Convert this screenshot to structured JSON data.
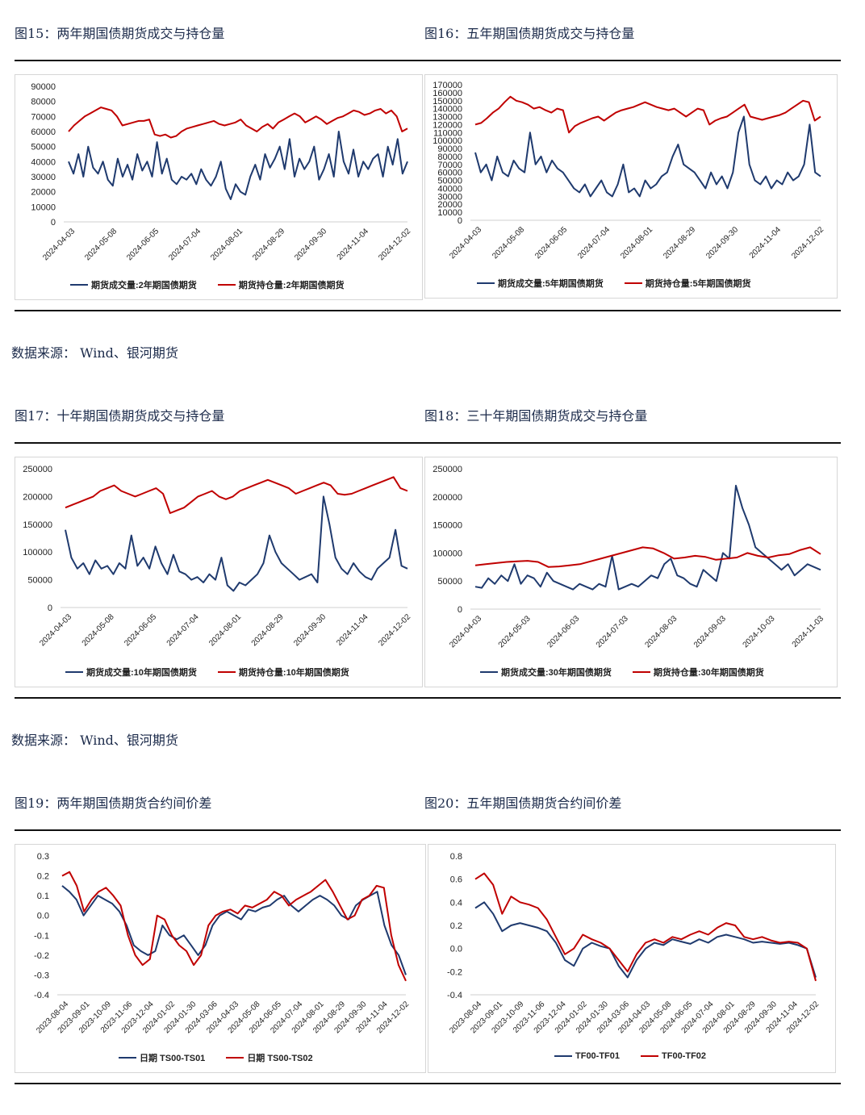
{
  "colors": {
    "blue": "#1f3a6e",
    "red": "#c00000",
    "axis": "#cfcfcf",
    "text": "#222222"
  },
  "row1": {
    "left_title": "图15：两年期国债期货成交与持仓量",
    "right_title": "图16：五年期国债期货成交与持仓量",
    "source": "数据来源：   Wind、银河期货"
  },
  "row2": {
    "left_title": "图17：十年期国债期货成交与持仓量",
    "right_title": "图18：三十年期国债期货成交与持仓量",
    "source": "数据来源：   Wind、银河期货"
  },
  "row3": {
    "left_title": "图19：两年期国债期货合约间价差",
    "right_title": "图20：五年期国债期货合约间价差"
  },
  "chart_data": [
    {
      "id": "c15",
      "type": "line",
      "title": "两年期国债期货成交与持仓量",
      "y_ticks": [
        0,
        10000,
        20000,
        30000,
        40000,
        50000,
        60000,
        70000,
        80000,
        90000
      ],
      "ylim": [
        0,
        90000
      ],
      "x_ticks": [
        "2024-04-03",
        "2024-05-08",
        "2024-06-05",
        "2024-07-04",
        "2024-08-01",
        "2024-08-29",
        "2024-09-30",
        "2024-11-04",
        "2024-12-02"
      ],
      "series": [
        {
          "name": "期货成交量:2年期国债期货",
          "color": "blue",
          "values": [
            40000,
            32000,
            45000,
            30000,
            50000,
            36000,
            32000,
            40000,
            28000,
            24000,
            42000,
            30000,
            38000,
            28000,
            45000,
            34000,
            40000,
            30000,
            53000,
            32000,
            42000,
            28000,
            25000,
            30000,
            28000,
            32000,
            25000,
            35000,
            28000,
            24000,
            30000,
            40000,
            22000,
            15000,
            25000,
            20000,
            18000,
            30000,
            38000,
            28000,
            45000,
            36000,
            42000,
            50000,
            35000,
            55000,
            30000,
            42000,
            35000,
            40000,
            50000,
            28000,
            35000,
            45000,
            30000,
            60000,
            40000,
            32000,
            48000,
            30000,
            40000,
            35000,
            42000,
            45000,
            30000,
            50000,
            38000,
            55000,
            32000,
            40000
          ]
        },
        {
          "name": "期货持仓量:2年期国债期货",
          "color": "red",
          "values": [
            60000,
            64000,
            67000,
            70000,
            72000,
            74000,
            76000,
            75000,
            74000,
            70000,
            64000,
            65000,
            66000,
            67000,
            67000,
            68000,
            58000,
            57000,
            58000,
            56000,
            57000,
            60000,
            62000,
            63000,
            64000,
            65000,
            66000,
            67000,
            65000,
            64000,
            65000,
            66000,
            68000,
            64000,
            62000,
            60000,
            63000,
            65000,
            62000,
            66000,
            68000,
            70000,
            72000,
            70000,
            66000,
            68000,
            70000,
            68000,
            65000,
            67000,
            69000,
            70000,
            72000,
            74000,
            73000,
            71000,
            72000,
            74000,
            75000,
            72000,
            74000,
            70000,
            60000,
            62000
          ]
        }
      ]
    },
    {
      "id": "c16",
      "type": "line",
      "title": "五年期国债期货成交与持仓量",
      "y_ticks": [
        0,
        10000,
        20000,
        30000,
        40000,
        50000,
        60000,
        70000,
        80000,
        90000,
        100000,
        110000,
        120000,
        130000,
        140000,
        150000,
        160000,
        170000
      ],
      "ylim": [
        0,
        170000
      ],
      "x_ticks": [
        "2024-04-03",
        "2024-05-08",
        "2024-06-05",
        "2024-07-04",
        "2024-08-01",
        "2024-08-29",
        "2024-09-30",
        "2024-11-04",
        "2024-12-02"
      ],
      "series": [
        {
          "name": "期货成交量:5年期国债期货",
          "color": "blue",
          "values": [
            85000,
            60000,
            70000,
            50000,
            80000,
            60000,
            55000,
            75000,
            65000,
            60000,
            110000,
            70000,
            80000,
            60000,
            75000,
            65000,
            60000,
            50000,
            40000,
            35000,
            45000,
            30000,
            40000,
            50000,
            35000,
            30000,
            45000,
            70000,
            35000,
            40000,
            30000,
            50000,
            40000,
            45000,
            55000,
            60000,
            80000,
            95000,
            70000,
            65000,
            60000,
            50000,
            40000,
            60000,
            45000,
            55000,
            40000,
            60000,
            110000,
            130000,
            70000,
            50000,
            45000,
            55000,
            40000,
            50000,
            45000,
            60000,
            50000,
            55000,
            70000,
            120000,
            60000,
            55000
          ]
        },
        {
          "name": "期货持仓量:5年期国债期货",
          "color": "red",
          "values": [
            120000,
            122000,
            128000,
            135000,
            140000,
            148000,
            155000,
            150000,
            148000,
            145000,
            140000,
            142000,
            138000,
            135000,
            140000,
            138000,
            110000,
            118000,
            122000,
            125000,
            128000,
            130000,
            125000,
            130000,
            135000,
            138000,
            140000,
            142000,
            145000,
            148000,
            145000,
            142000,
            140000,
            138000,
            140000,
            135000,
            130000,
            135000,
            140000,
            138000,
            120000,
            125000,
            128000,
            130000,
            135000,
            140000,
            145000,
            130000,
            128000,
            126000,
            128000,
            130000,
            132000,
            135000,
            140000,
            145000,
            150000,
            148000,
            125000,
            130000
          ]
        }
      ]
    },
    {
      "id": "c17",
      "type": "line",
      "title": "十年期国债期货成交与持仓量",
      "y_ticks": [
        0,
        50000,
        100000,
        150000,
        200000,
        250000
      ],
      "ylim": [
        0,
        250000
      ],
      "x_ticks": [
        "2024-04-03",
        "2024-05-08",
        "2024-06-05",
        "2024-07-04",
        "2024-08-01",
        "2024-08-29",
        "2024-09-30",
        "2024-11-04",
        "2024-12-02"
      ],
      "series": [
        {
          "name": "期货成交量:10年期国债期货",
          "color": "blue",
          "values": [
            140000,
            90000,
            70000,
            80000,
            60000,
            85000,
            70000,
            75000,
            60000,
            80000,
            70000,
            130000,
            75000,
            90000,
            70000,
            110000,
            80000,
            60000,
            95000,
            65000,
            60000,
            50000,
            55000,
            45000,
            60000,
            50000,
            90000,
            40000,
            30000,
            45000,
            40000,
            50000,
            60000,
            80000,
            130000,
            100000,
            80000,
            70000,
            60000,
            50000,
            55000,
            60000,
            45000,
            200000,
            150000,
            90000,
            70000,
            60000,
            80000,
            65000,
            55000,
            50000,
            70000,
            80000,
            90000,
            140000,
            75000,
            70000
          ]
        },
        {
          "name": "期货持仓量:10年期国债期货",
          "color": "red",
          "values": [
            180000,
            185000,
            190000,
            195000,
            200000,
            210000,
            215000,
            220000,
            210000,
            205000,
            200000,
            205000,
            210000,
            215000,
            205000,
            170000,
            175000,
            180000,
            190000,
            200000,
            205000,
            210000,
            200000,
            195000,
            200000,
            210000,
            215000,
            220000,
            225000,
            230000,
            225000,
            220000,
            215000,
            205000,
            210000,
            215000,
            220000,
            225000,
            220000,
            205000,
            203000,
            205000,
            210000,
            215000,
            220000,
            225000,
            230000,
            235000,
            215000,
            210000
          ]
        }
      ]
    },
    {
      "id": "c18",
      "type": "line",
      "title": "三十年期国债期货成交与持仓量",
      "y_ticks": [
        0,
        50000,
        100000,
        150000,
        200000,
        250000
      ],
      "ylim": [
        0,
        250000
      ],
      "x_ticks": [
        "2024-04-03",
        "2024-05-03",
        "2024-06-03",
        "2024-07-03",
        "2024-08-03",
        "2024-09-03",
        "2024-10-03",
        "2024-11-03"
      ],
      "series": [
        {
          "name": "期货成交量:30年期国债期货",
          "color": "blue",
          "values": [
            40000,
            38000,
            55000,
            45000,
            60000,
            50000,
            80000,
            45000,
            60000,
            55000,
            40000,
            65000,
            50000,
            45000,
            40000,
            35000,
            45000,
            40000,
            35000,
            45000,
            40000,
            95000,
            35000,
            40000,
            45000,
            40000,
            50000,
            60000,
            55000,
            80000,
            90000,
            60000,
            55000,
            45000,
            40000,
            70000,
            60000,
            50000,
            100000,
            90000,
            220000,
            180000,
            150000,
            110000,
            100000,
            90000,
            80000,
            70000,
            80000,
            60000,
            70000,
            80000,
            75000,
            70000
          ]
        },
        {
          "name": "期货持仓量:30年期国债期货",
          "color": "red",
          "values": [
            78000,
            80000,
            82000,
            84000,
            85000,
            86000,
            84000,
            75000,
            76000,
            78000,
            80000,
            85000,
            90000,
            95000,
            100000,
            105000,
            110000,
            108000,
            100000,
            90000,
            92000,
            95000,
            93000,
            88000,
            90000,
            92000,
            100000,
            95000,
            92000,
            96000,
            98000,
            105000,
            110000,
            98000
          ]
        }
      ]
    },
    {
      "id": "c19",
      "type": "line",
      "title": "两年期国债期货合约间价差",
      "y_ticks": [
        -0.4,
        -0.3,
        -0.2,
        -0.1,
        0.0,
        0.1,
        0.2,
        0.3
      ],
      "y_tick_labels": [
        "-0.4",
        "-0.3",
        "-0.2",
        "-0.1",
        "0.0",
        "0.1",
        "0.2",
        "0.3"
      ],
      "ylim": [
        -0.4,
        0.3
      ],
      "x_ticks": [
        "2023-08-04",
        "2023-09-01",
        "2023-10-09",
        "2023-11-06",
        "2023-12-04",
        "2024-01-02",
        "2024-01-30",
        "2024-03-06",
        "2024-04-03",
        "2024-05-08",
        "2024-06-05",
        "2024-07-04",
        "2024-08-01",
        "2024-08-29",
        "2024-09-30",
        "2024-11-04",
        "2024-12-02"
      ],
      "series": [
        {
          "name": "日期 TS00-TS01",
          "color": "blue",
          "values": [
            0.15,
            0.12,
            0.08,
            0.0,
            0.05,
            0.1,
            0.08,
            0.06,
            0.02,
            -0.05,
            -0.15,
            -0.18,
            -0.2,
            -0.18,
            -0.05,
            -0.1,
            -0.12,
            -0.1,
            -0.15,
            -0.2,
            -0.15,
            -0.05,
            0.0,
            0.02,
            0.0,
            -0.02,
            0.03,
            0.02,
            0.04,
            0.05,
            0.08,
            0.1,
            0.05,
            0.02,
            0.05,
            0.08,
            0.1,
            0.08,
            0.05,
            0.0,
            -0.02,
            0.05,
            0.08,
            0.1,
            0.12,
            -0.05,
            -0.15,
            -0.2,
            -0.3
          ]
        },
        {
          "name": "日期 TS00-TS02",
          "color": "red",
          "values": [
            0.2,
            0.22,
            0.15,
            0.02,
            0.08,
            0.12,
            0.14,
            0.1,
            0.05,
            -0.1,
            -0.2,
            -0.25,
            -0.22,
            0.0,
            -0.02,
            -0.1,
            -0.15,
            -0.18,
            -0.25,
            -0.2,
            -0.05,
            0.0,
            0.02,
            0.03,
            0.01,
            0.05,
            0.04,
            0.06,
            0.08,
            0.12,
            0.1,
            0.05,
            0.08,
            0.1,
            0.12,
            0.15,
            0.18,
            0.12,
            0.05,
            -0.02,
            0.0,
            0.08,
            0.1,
            0.15,
            0.14,
            -0.1,
            -0.25,
            -0.33
          ]
        }
      ]
    },
    {
      "id": "c20",
      "type": "line",
      "title": "五年期国债期货合约间价差",
      "y_ticks": [
        -0.4,
        -0.2,
        0.0,
        0.2,
        0.4,
        0.6,
        0.8
      ],
      "y_tick_labels": [
        "-0.4",
        "-0.2",
        "0.0",
        "0.2",
        "0.4",
        "0.6",
        "0.8"
      ],
      "ylim": [
        -0.4,
        0.8
      ],
      "x_ticks": [
        "2023-08-04",
        "2023-09-01",
        "2023-10-09",
        "2023-11-06",
        "2023-12-04",
        "2024-01-02",
        "2024-01-30",
        "2024-03-06",
        "2024-04-03",
        "2024-05-08",
        "2024-06-05",
        "2024-07-04",
        "2024-08-01",
        "2024-08-29",
        "2024-09-30",
        "2024-11-04",
        "2024-12-02"
      ],
      "series": [
        {
          "name": "TF00-TF01",
          "color": "blue",
          "values": [
            0.35,
            0.4,
            0.3,
            0.15,
            0.2,
            0.22,
            0.2,
            0.18,
            0.15,
            0.05,
            -0.1,
            -0.15,
            0.0,
            0.05,
            0.02,
            0.0,
            -0.15,
            -0.25,
            -0.1,
            0.0,
            0.05,
            0.03,
            0.08,
            0.06,
            0.04,
            0.08,
            0.05,
            0.1,
            0.12,
            0.1,
            0.08,
            0.05,
            0.06,
            0.05,
            0.04,
            0.05,
            0.03,
            0.0,
            -0.25
          ]
        },
        {
          "name": "TF00-TF02",
          "color": "red",
          "values": [
            0.6,
            0.65,
            0.55,
            0.3,
            0.45,
            0.4,
            0.38,
            0.35,
            0.25,
            0.1,
            -0.05,
            0.0,
            0.12,
            0.08,
            0.05,
            0.0,
            -0.1,
            -0.2,
            -0.05,
            0.05,
            0.08,
            0.05,
            0.1,
            0.08,
            0.12,
            0.15,
            0.12,
            0.18,
            0.22,
            0.2,
            0.1,
            0.08,
            0.1,
            0.07,
            0.05,
            0.06,
            0.05,
            0.0,
            -0.28
          ]
        }
      ]
    }
  ]
}
